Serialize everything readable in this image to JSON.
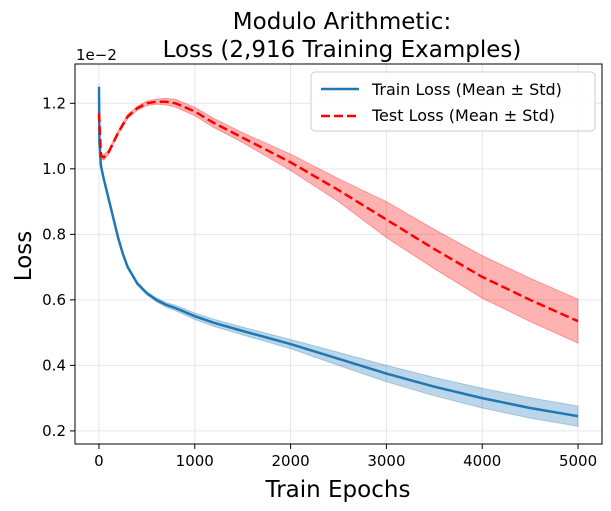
{
  "chart_data": {
    "type": "line",
    "title_lines": [
      "Modulo Arithmetic:",
      "Loss (2,916 Training Examples)"
    ],
    "xlabel": "Train Epochs",
    "ylabel": "Loss",
    "y_offset_label": "1e−2",
    "xlim": [
      -250,
      5250
    ],
    "ylim": [
      0.16,
      1.32
    ],
    "x_ticks": [
      0,
      1000,
      2000,
      3000,
      4000,
      5000
    ],
    "x_tick_labels": [
      "0",
      "1000",
      "2000",
      "3000",
      "4000",
      "5000"
    ],
    "y_ticks": [
      0.2,
      0.4,
      0.6,
      0.8,
      1.0,
      1.2
    ],
    "y_tick_labels": [
      "0.2",
      "0.4",
      "0.6",
      "0.8",
      "1.0",
      "1.2"
    ],
    "grid": true,
    "legend_position": "top-right",
    "series": [
      {
        "name": "Train Loss (Mean ± Std)",
        "color": "#1f77b4",
        "band_color": "#1f77b4",
        "style": "solid",
        "x": [
          0,
          5,
          20,
          50,
          100,
          150,
          200,
          250,
          300,
          400,
          500,
          600,
          700,
          800,
          1000,
          1200,
          1500,
          2000,
          2500,
          3000,
          3500,
          4000,
          4500,
          5000
        ],
        "mean": [
          1.25,
          1.08,
          1.01,
          0.97,
          0.91,
          0.85,
          0.79,
          0.74,
          0.7,
          0.65,
          0.62,
          0.6,
          0.585,
          0.575,
          0.55,
          0.53,
          0.505,
          0.465,
          0.42,
          0.375,
          0.335,
          0.3,
          0.27,
          0.245
        ],
        "std": [
          0.01,
          0.01,
          0.008,
          0.006,
          0.005,
          0.005,
          0.005,
          0.005,
          0.005,
          0.005,
          0.005,
          0.006,
          0.007,
          0.008,
          0.01,
          0.011,
          0.012,
          0.014,
          0.02,
          0.025,
          0.028,
          0.03,
          0.031,
          0.031
        ]
      },
      {
        "name": "Test Loss (Mean ± Std)",
        "color": "#ff0000",
        "band_color": "#ff0000",
        "style": "dashed",
        "x": [
          0,
          20,
          50,
          100,
          200,
          300,
          400,
          500,
          600,
          700,
          800,
          1000,
          1200,
          1500,
          2000,
          2500,
          3000,
          3500,
          4000,
          4500,
          5000
        ],
        "mean": [
          1.17,
          1.04,
          1.035,
          1.05,
          1.11,
          1.16,
          1.185,
          1.2,
          1.205,
          1.205,
          1.2,
          1.175,
          1.14,
          1.095,
          1.02,
          0.935,
          0.845,
          0.755,
          0.67,
          0.6,
          0.535
        ],
        "std": [
          0.012,
          0.01,
          0.008,
          0.007,
          0.006,
          0.006,
          0.006,
          0.007,
          0.008,
          0.01,
          0.012,
          0.013,
          0.014,
          0.015,
          0.025,
          0.035,
          0.055,
          0.06,
          0.065,
          0.066,
          0.067
        ]
      }
    ]
  }
}
